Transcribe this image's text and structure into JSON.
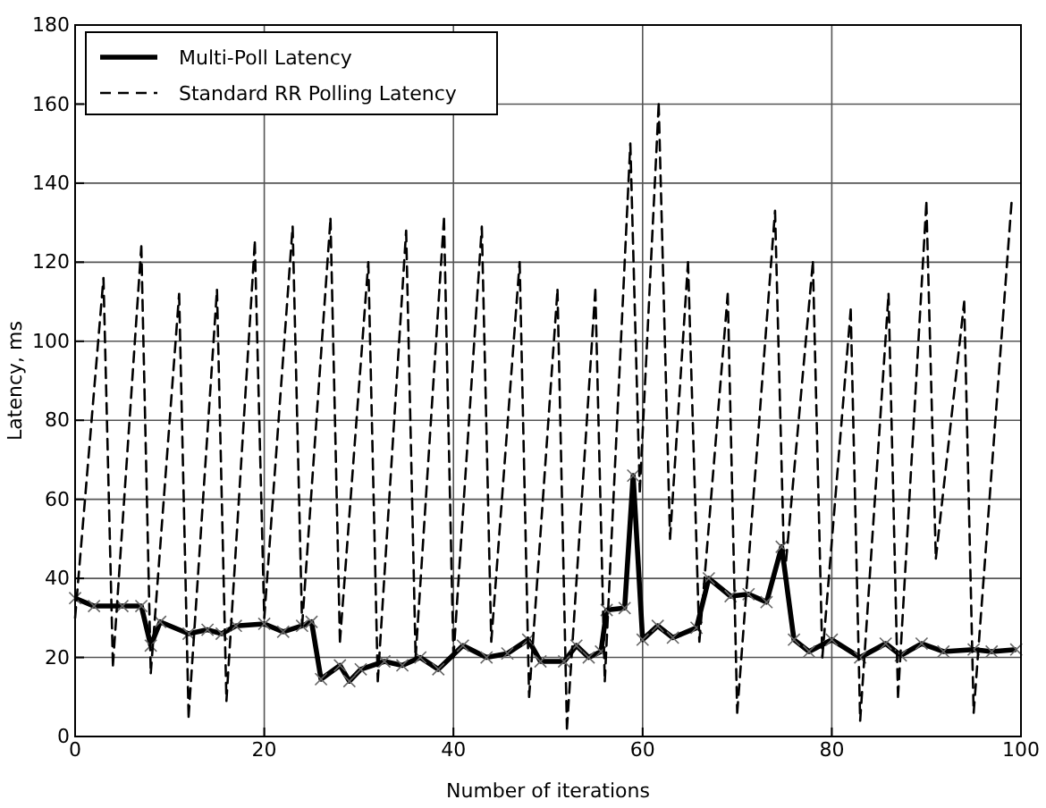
{
  "chart_data": {
    "type": "line",
    "xlabel": "Number of iterations",
    "ylabel": "Latency, ms",
    "xlim": [
      0,
      100
    ],
    "xticks": [
      0,
      20,
      40,
      60,
      80,
      100
    ],
    "ylim": [
      0,
      180
    ],
    "yticks": [
      0,
      20,
      40,
      60,
      80,
      100,
      120,
      140,
      160,
      180
    ],
    "grid": true,
    "legend": "top left",
    "series": [
      {
        "name": "Multi-Poll Latency",
        "color": "#000000",
        "marker": "cross",
        "line_style": "solid",
        "x": [
          0,
          2,
          5,
          7,
          8,
          9,
          12,
          14,
          15.5,
          17,
          20,
          22,
          24,
          25,
          26,
          28,
          29,
          30.2,
          32.7,
          34.6,
          36.5,
          38.4,
          41,
          43.5,
          45.7,
          47.9,
          49.2,
          51.7,
          53,
          54.3,
          55.6,
          56.2,
          58.1,
          59,
          60,
          61.6,
          63.2,
          65.7,
          67,
          69.3,
          71.2,
          73.1,
          74.7,
          76,
          77.6,
          80,
          83,
          85.7,
          87.3,
          89.5,
          91.8,
          95,
          96.9,
          99.5
        ],
        "values": [
          35,
          33,
          33,
          33,
          23,
          29,
          26,
          27,
          26,
          28,
          28.5,
          26.5,
          28,
          29,
          14.5,
          18,
          14,
          17,
          19,
          18,
          20,
          17,
          23,
          20,
          21,
          24.5,
          19,
          19,
          23,
          20,
          21.5,
          32,
          32.5,
          66,
          24.5,
          28,
          25,
          27.5,
          40,
          35.5,
          36,
          34,
          48,
          24.5,
          21.5,
          24.5,
          20,
          23.5,
          20.5,
          23.5,
          21.5,
          22,
          21.5,
          22
        ]
      },
      {
        "name": "Standard RR Polling Latency",
        "color": "#000000",
        "marker": "none",
        "line_style": "dashed",
        "x": [
          0,
          3,
          4,
          7,
          8,
          11,
          12,
          15,
          16,
          19,
          20,
          23,
          24,
          27,
          28,
          31,
          32,
          35,
          36,
          39,
          40,
          43,
          44,
          47,
          48,
          51,
          52,
          55,
          56,
          58.7,
          59.7,
          61.7,
          62.9,
          64.8,
          66,
          69,
          70,
          74,
          75,
          78,
          79,
          82,
          83,
          86,
          87,
          90,
          91,
          94,
          95,
          99
        ],
        "values": [
          30,
          116,
          18,
          124,
          16,
          112,
          5,
          113,
          9,
          125,
          30,
          129,
          28,
          131,
          24,
          120,
          14,
          128,
          20,
          131,
          20,
          129,
          24,
          120,
          10,
          113,
          2,
          113,
          14,
          150,
          62,
          160,
          50,
          120,
          24,
          112,
          6,
          133,
          40,
          120,
          20,
          108,
          4,
          112,
          10,
          135,
          45,
          110,
          6,
          135
        ]
      }
    ]
  }
}
